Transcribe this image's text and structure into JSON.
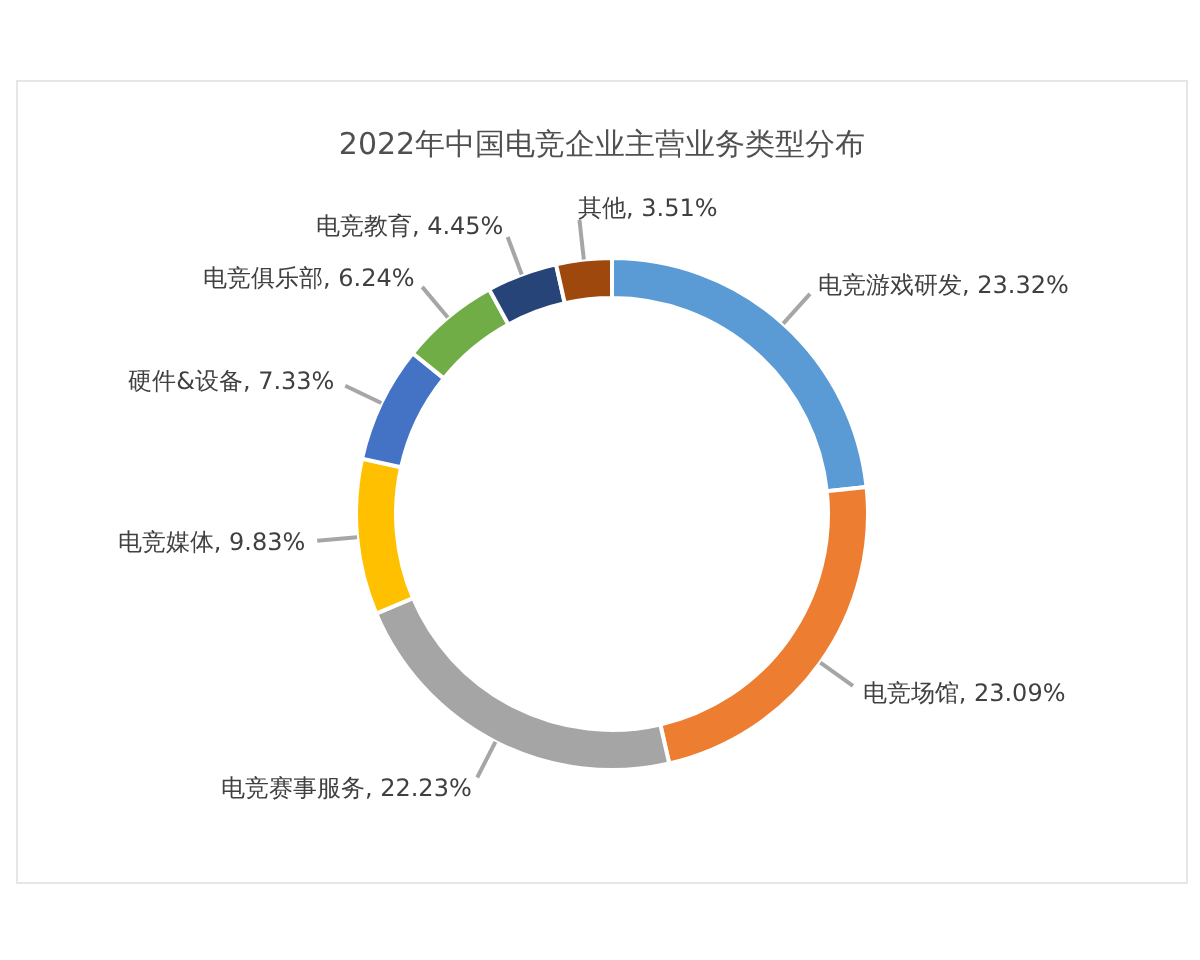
{
  "chart_data": {
    "type": "donut",
    "title": "2022年中国电竞企业主营业务类型分布",
    "categories": [
      "电竞游戏研发",
      "电竞场馆",
      "电竞赛事服务",
      "电竞媒体",
      "硬件&设备",
      "电竞俱乐部",
      "电竞教育",
      "其他"
    ],
    "values": [
      23.32,
      23.09,
      22.23,
      9.83,
      7.33,
      6.24,
      4.45,
      3.51
    ],
    "value_labels": [
      "23.32%",
      "23.09%",
      "22.23%",
      "9.83%",
      "7.33%",
      "6.24%",
      "4.45%",
      "3.51%"
    ],
    "colors": [
      "#5b9bd5",
      "#ed7d31",
      "#a5a5a5",
      "#ffc000",
      "#4472c4",
      "#70ad47",
      "#264478",
      "#9e480e"
    ],
    "legend": false
  }
}
